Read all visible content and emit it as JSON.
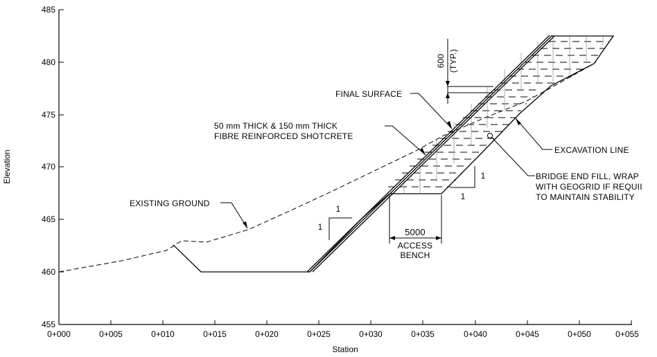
{
  "axes": {
    "x_title": "Station",
    "y_title": "Elevation",
    "x_ticks": [
      "0+000",
      "0+005",
      "0+010",
      "0+015",
      "0+020",
      "0+025",
      "0+030",
      "0+035",
      "0+040",
      "0+045",
      "0+050",
      "0+055"
    ],
    "y_ticks": [
      "485",
      "480",
      "475",
      "470",
      "465",
      "460",
      "455"
    ],
    "x_range": [
      0,
      55
    ],
    "y_range": [
      455,
      485
    ]
  },
  "labels": {
    "existing_ground": "EXISTING GROUND",
    "final_surface": "FINAL SURFACE",
    "shotcrete_line1": "50 mm THICK & 150 mm THICK",
    "shotcrete_line2": "FIBRE REINFORCED SHOTCRETE",
    "excavation_line": "EXCAVATION LINE",
    "fill_line1": "BRIDGE END FILL, WRAP",
    "fill_line2": "WITH GEOGRID IF REQUII",
    "fill_line3": "TO MAINTAIN STABILITY",
    "bench_width": "5000",
    "bench_line1": "ACCESS",
    "bench_line2": "BENCH",
    "lift_height": "600",
    "lift_typ": "(TYP.)",
    "slope_1_run": "1",
    "slope_1_rise": "1",
    "slope_2_run": "1",
    "slope_2_rise": "1"
  }
}
